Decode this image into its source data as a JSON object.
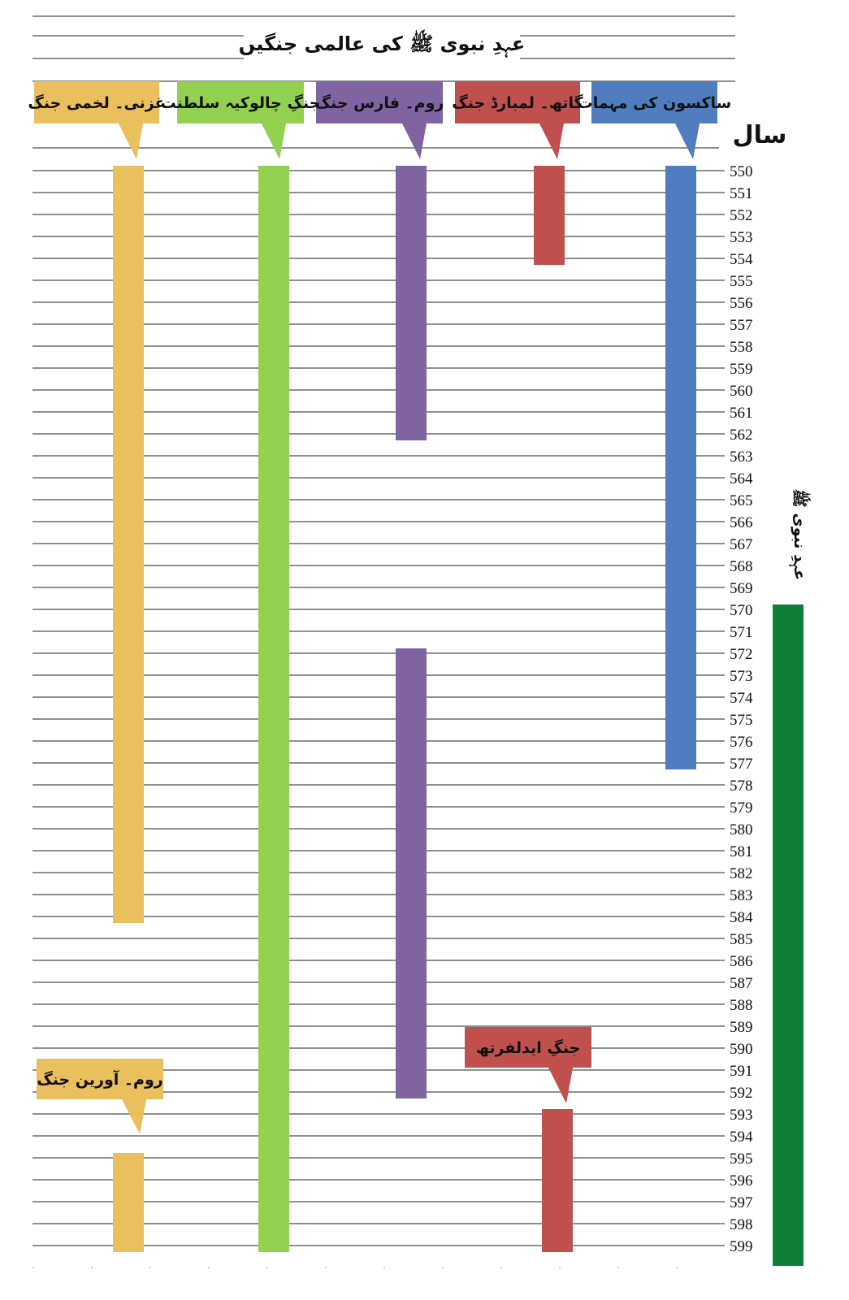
{
  "chart_data": {
    "type": "bar",
    "title": "عہدِ نبوی ﷺ کی عالمی جنگیں",
    "axis_title": "سال",
    "year_range": [
      550,
      599
    ],
    "era": {
      "label": "عہدِ نبوی ﷺ",
      "start": 570,
      "end": 599,
      "color": "#0f7d3a"
    },
    "lanes": [
      {
        "name": "ساکسون کی مہمات",
        "color": "#4f7dbf",
        "bars": [
          {
            "start": 550,
            "end": 577
          }
        ]
      },
      {
        "name": "گاتھ۔ لمبارڈ جنگ",
        "color": "#c0504d",
        "bars": [
          {
            "start": 550,
            "end": 554
          }
        ]
      },
      {
        "name": "روم۔ فارس جنگ",
        "color": "#8064a2",
        "bars": [
          {
            "start": 550,
            "end": 562
          },
          {
            "start": 572,
            "end": 592
          }
        ]
      },
      {
        "name": "جنگِ چالوکیہ سلطنت",
        "color": "#92d050",
        "bars": [
          {
            "start": 550,
            "end": 599
          }
        ]
      },
      {
        "name": "غزنی۔ لخمی جنگ",
        "color": "#eabf5e",
        "bars": [
          {
            "start": 550,
            "end": 584
          }
        ]
      },
      {
        "name": "روم۔ آورین جنگ",
        "color": "#eabf5e",
        "bars": [
          {
            "start": 595,
            "end": 599
          }
        ]
      },
      {
        "name": "جنگِ ایدلفرتھ",
        "color": "#c0504d",
        "bars": [
          {
            "start": 593,
            "end": 599
          }
        ]
      }
    ]
  }
}
